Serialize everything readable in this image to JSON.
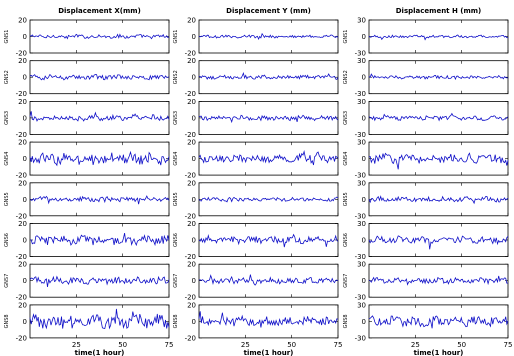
{
  "chart_data": {
    "type": "line",
    "columns": [
      "Displacement X(mm)",
      "Displacement Y (mm)",
      "Displacement H (mm)"
    ],
    "rows": [
      "GNS1",
      "GNS2",
      "GNS3",
      "GNS4",
      "GNS5",
      "GNS6",
      "GNS7",
      "GNS8"
    ],
    "xlabel": "time(1 hour)",
    "xlim": [
      0,
      75
    ],
    "xticks": [
      "25",
      "50",
      "75"
    ],
    "ylim": [
      -20,
      20
    ],
    "yticks": [
      "20",
      "0",
      "-20"
    ],
    "ylim_H": [
      -30,
      30
    ],
    "yticks_H": [
      "30",
      "0",
      "-30"
    ],
    "line_color": "#1010c8",
    "noise_amplitude": [
      [
        2.0,
        1.5,
        2.0
      ],
      [
        2.5,
        2.0,
        2.5
      ],
      [
        3.0,
        2.5,
        3.5
      ],
      [
        6.0,
        4.0,
        7.5
      ],
      [
        2.5,
        2.0,
        4.0
      ],
      [
        5.0,
        3.5,
        6.0
      ],
      [
        4.0,
        3.0,
        4.5
      ],
      [
        7.0,
        5.0,
        8.0
      ]
    ]
  }
}
